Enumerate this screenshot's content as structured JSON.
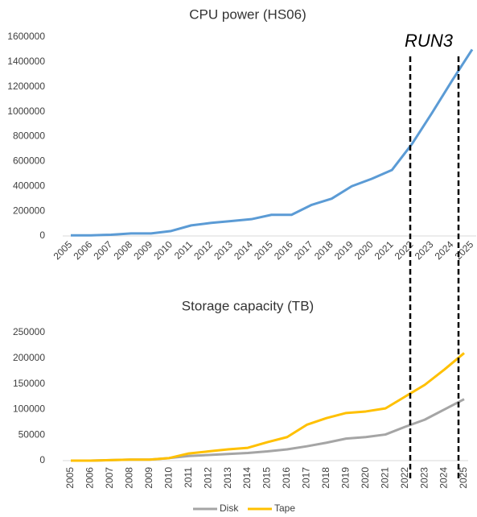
{
  "chart_data": [
    {
      "type": "line",
      "title": "CPU power (HS06)",
      "annotation": "RUN3",
      "categories": [
        "2005",
        "2006",
        "2007",
        "2008",
        "2009",
        "2010",
        "2011",
        "2012",
        "2013",
        "2014",
        "2015",
        "2016",
        "2017",
        "2018",
        "2019",
        "2020",
        "2021",
        "2022",
        "2023",
        "2024",
        "2025"
      ],
      "values": [
        5000,
        5000,
        10000,
        20000,
        20000,
        40000,
        85000,
        105000,
        120000,
        135000,
        170000,
        170000,
        250000,
        300000,
        400000,
        460000,
        530000,
        740000,
        990000,
        1250000,
        1500000
      ],
      "color": "#5b9bd5",
      "ylim": [
        0,
        1600000
      ],
      "yticks": [
        0,
        200000,
        400000,
        600000,
        800000,
        1000000,
        1200000,
        1400000,
        1600000
      ]
    },
    {
      "type": "line",
      "title": "Storage capacity (TB)",
      "categories": [
        "2005",
        "2006",
        "2007",
        "2008",
        "2009",
        "2010",
        "2011",
        "2012",
        "2013",
        "2014",
        "2015",
        "2016",
        "2017",
        "2018",
        "2019",
        "2020",
        "2021",
        "2022",
        "2023",
        "2024",
        "2025"
      ],
      "series": [
        {
          "name": "Disk",
          "color": "#a5a5a5",
          "values": [
            0,
            0,
            1000,
            2000,
            2000,
            5000,
            9000,
            11000,
            13000,
            15000,
            18000,
            22000,
            28000,
            35000,
            43000,
            46000,
            51000,
            66000,
            80000,
            100000,
            120000
          ]
        },
        {
          "name": "Tape",
          "color": "#ffc000",
          "values": [
            0,
            0,
            1000,
            2000,
            2000,
            5000,
            14000,
            18000,
            22000,
            25000,
            36000,
            46000,
            70000,
            83000,
            93000,
            96000,
            102000,
            125000,
            148000,
            178000,
            210000
          ]
        }
      ],
      "ylim": [
        0,
        250000
      ],
      "yticks": [
        0,
        50000,
        100000,
        150000,
        200000,
        250000
      ],
      "legend": "bottom"
    }
  ]
}
